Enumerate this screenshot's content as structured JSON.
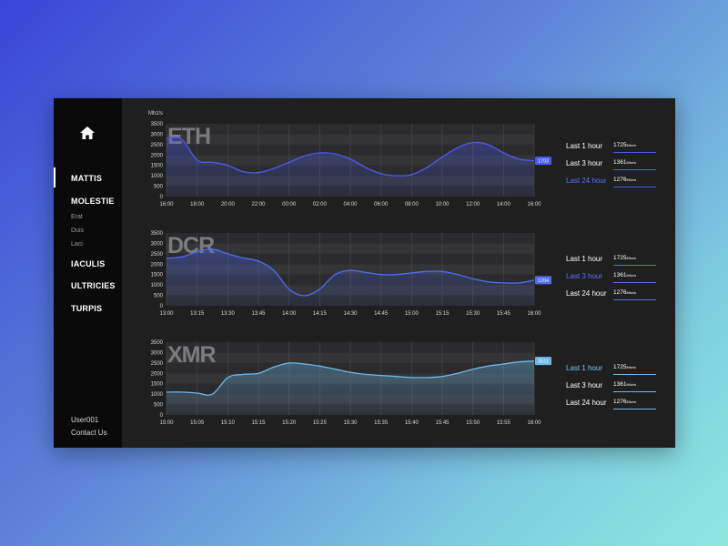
{
  "sidebar": {
    "items": [
      {
        "label": "MATTIS",
        "active": true
      },
      {
        "label": "MOLESTIE"
      },
      {
        "label": "IACULIS"
      },
      {
        "label": "ULTRICIES"
      },
      {
        "label": "TURPIS"
      }
    ],
    "subitems": [
      "Erat",
      "Duis",
      "Laci"
    ],
    "user": "User001",
    "contact": "Contact Us"
  },
  "unit_label": "Mhz/s",
  "stats": [
    {
      "label": "Last 1 hour",
      "value": "1725",
      "unit": "Mhz/s"
    },
    {
      "label": "Last 3 hour",
      "value": "1361",
      "unit": "Mhz/s"
    },
    {
      "label": "Last 24 hour",
      "value": "1276",
      "unit": "Mhz/s"
    }
  ],
  "colors": {
    "eth": "#4a5cf0",
    "dcr": "#4f6df0",
    "xmr": "#6bb9ec",
    "band_dark": "#2b2b2d",
    "band_light": "#353537"
  },
  "chart_data": [
    {
      "type": "area",
      "title": "ETH",
      "active_stat": 2,
      "badge": "1703",
      "ylabel": "Mhz/s",
      "ylim": [
        0,
        3500
      ],
      "y_ticks": [
        "0",
        "500",
        "1000",
        "1500",
        "2000",
        "2500",
        "3000",
        "3500"
      ],
      "x_labels": [
        "16:00",
        "18:00",
        "20:00",
        "22:00",
        "00:00",
        "02:00",
        "04:00",
        "06:00",
        "08:00",
        "10:00",
        "12:00",
        "14:00",
        "16:00"
      ],
      "x": [
        0,
        0.5,
        1,
        1.5,
        2,
        2.5,
        3,
        3.5,
        4,
        4.5,
        5,
        5.5,
        6,
        6.5,
        7,
        7.5,
        8,
        8.5,
        9,
        9.5,
        10,
        10.5,
        11,
        11.5,
        12
      ],
      "values": [
        2800,
        2750,
        1750,
        1650,
        1500,
        1200,
        1150,
        1350,
        1650,
        1950,
        2100,
        2050,
        1800,
        1400,
        1100,
        1000,
        1050,
        1400,
        1900,
        2350,
        2600,
        2500,
        2100,
        1800,
        1720
      ]
    },
    {
      "type": "area",
      "title": "DCR",
      "active_stat": 1,
      "badge": "1204",
      "ylim": [
        0,
        3500
      ],
      "y_ticks": [
        "0",
        "500",
        "1000",
        "1500",
        "2000",
        "2500",
        "3000",
        "3500"
      ],
      "x_labels": [
        "13:00",
        "13:15",
        "13:30",
        "13:45",
        "14:00",
        "14:15",
        "14:30",
        "14:45",
        "15:00",
        "15:15",
        "15:30",
        "15:45",
        "16:00"
      ],
      "x": [
        0,
        0.5,
        1,
        1.5,
        2,
        2.5,
        3,
        3.5,
        4,
        4.5,
        5,
        5.5,
        6,
        6.5,
        7,
        7.5,
        8,
        8.5,
        9,
        9.5,
        10,
        10.5,
        11,
        11.5,
        12
      ],
      "values": [
        2280,
        2350,
        2600,
        2720,
        2500,
        2300,
        2150,
        1700,
        800,
        480,
        800,
        1500,
        1700,
        1600,
        1500,
        1500,
        1580,
        1650,
        1650,
        1500,
        1300,
        1150,
        1100,
        1100,
        1230
      ]
    },
    {
      "type": "area",
      "title": "XMR",
      "active_stat": 0,
      "badge": "2511",
      "ylim": [
        0,
        3500
      ],
      "y_ticks": [
        "0",
        "500",
        "1000",
        "1500",
        "2000",
        "2500",
        "3000",
        "3500"
      ],
      "x_labels": [
        "15:00",
        "15:05",
        "15:10",
        "15:15",
        "15:20",
        "15:25",
        "15:30",
        "15:35",
        "15:40",
        "15:45",
        "15:50",
        "15:55",
        "16:00"
      ],
      "x": [
        0,
        0.5,
        1,
        1.5,
        2,
        2.5,
        3,
        3.5,
        4,
        4.5,
        5,
        5.5,
        6,
        6.5,
        7,
        7.5,
        8,
        8.5,
        9,
        9.5,
        10,
        10.5,
        11,
        11.5,
        12
      ],
      "values": [
        1100,
        1100,
        1050,
        1000,
        1800,
        1950,
        2000,
        2300,
        2500,
        2450,
        2350,
        2200,
        2050,
        1950,
        1900,
        1850,
        1800,
        1800,
        1850,
        2000,
        2200,
        2350,
        2450,
        2550,
        2600
      ]
    }
  ]
}
